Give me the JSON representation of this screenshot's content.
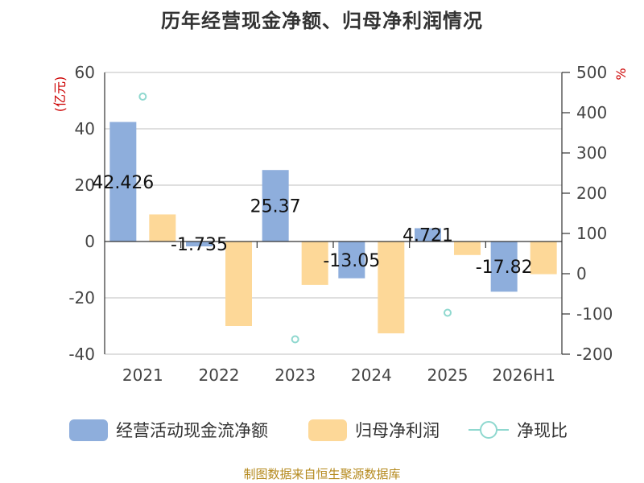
{
  "chart_data": {
    "type": "bar",
    "title": "历年经营现金净额、归母净利润情况",
    "categories": [
      "2021",
      "2022",
      "2023",
      "2024",
      "2025",
      "2026H1"
    ],
    "series": [
      {
        "name": "经营活动现金流净额",
        "type": "bar",
        "axis": "left",
        "color": "#8eaedc",
        "values": [
          42.426,
          -1.735,
          25.37,
          -13.05,
          4.721,
          -17.82
        ],
        "labels": [
          "42.426",
          "-1.735",
          "25.37",
          "-13.05",
          "4.721",
          "-17.82"
        ]
      },
      {
        "name": "归母净利润",
        "type": "bar",
        "axis": "left",
        "color": "#fdd898",
        "values": [
          9.6,
          -30.0,
          -15.4,
          -32.6,
          -4.8,
          -11.6
        ]
      },
      {
        "name": "净现比",
        "type": "scatter",
        "axis": "right",
        "color": "#8fd8cf",
        "values": [
          440,
          null,
          -163,
          null,
          -97,
          null
        ]
      }
    ],
    "yleft": {
      "label": "(亿元)",
      "ylim": [
        -40,
        60
      ],
      "ticks": [
        60,
        40,
        20,
        0,
        -20,
        -40
      ]
    },
    "yright": {
      "label": "%",
      "ylim": [
        -200,
        500
      ],
      "ticks": [
        500,
        400,
        300,
        200,
        100,
        0,
        -100,
        -200
      ]
    },
    "grid": true,
    "legend_position": "bottom",
    "source": "制图数据来自恒生聚源数据库",
    "colors": {
      "title": "#333333",
      "axis_label": "#cc0000",
      "source": "#b58a1e",
      "grid": "#cccccc"
    }
  }
}
